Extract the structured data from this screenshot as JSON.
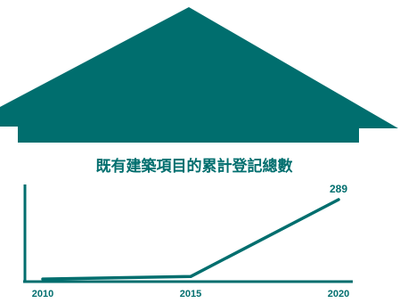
{
  "colors": {
    "teal": "#006e6e",
    "background": "#ffffff"
  },
  "chart_data": {
    "type": "line",
    "title": "既有建築項目的累計登記總數",
    "x": [
      2010,
      2015,
      2020
    ],
    "tick_labels": [
      "2010",
      "2015",
      "2020"
    ],
    "series": [
      {
        "values": [
          3,
          12,
          289
        ]
      }
    ],
    "data_labels": [
      {
        "index": 2,
        "text": "289"
      }
    ],
    "xlabel": "",
    "ylabel": "",
    "xlim": [
      2010,
      2020
    ],
    "ylim": [
      0,
      289
    ],
    "grid": false,
    "legend": "none",
    "decoration": "house-roof"
  }
}
